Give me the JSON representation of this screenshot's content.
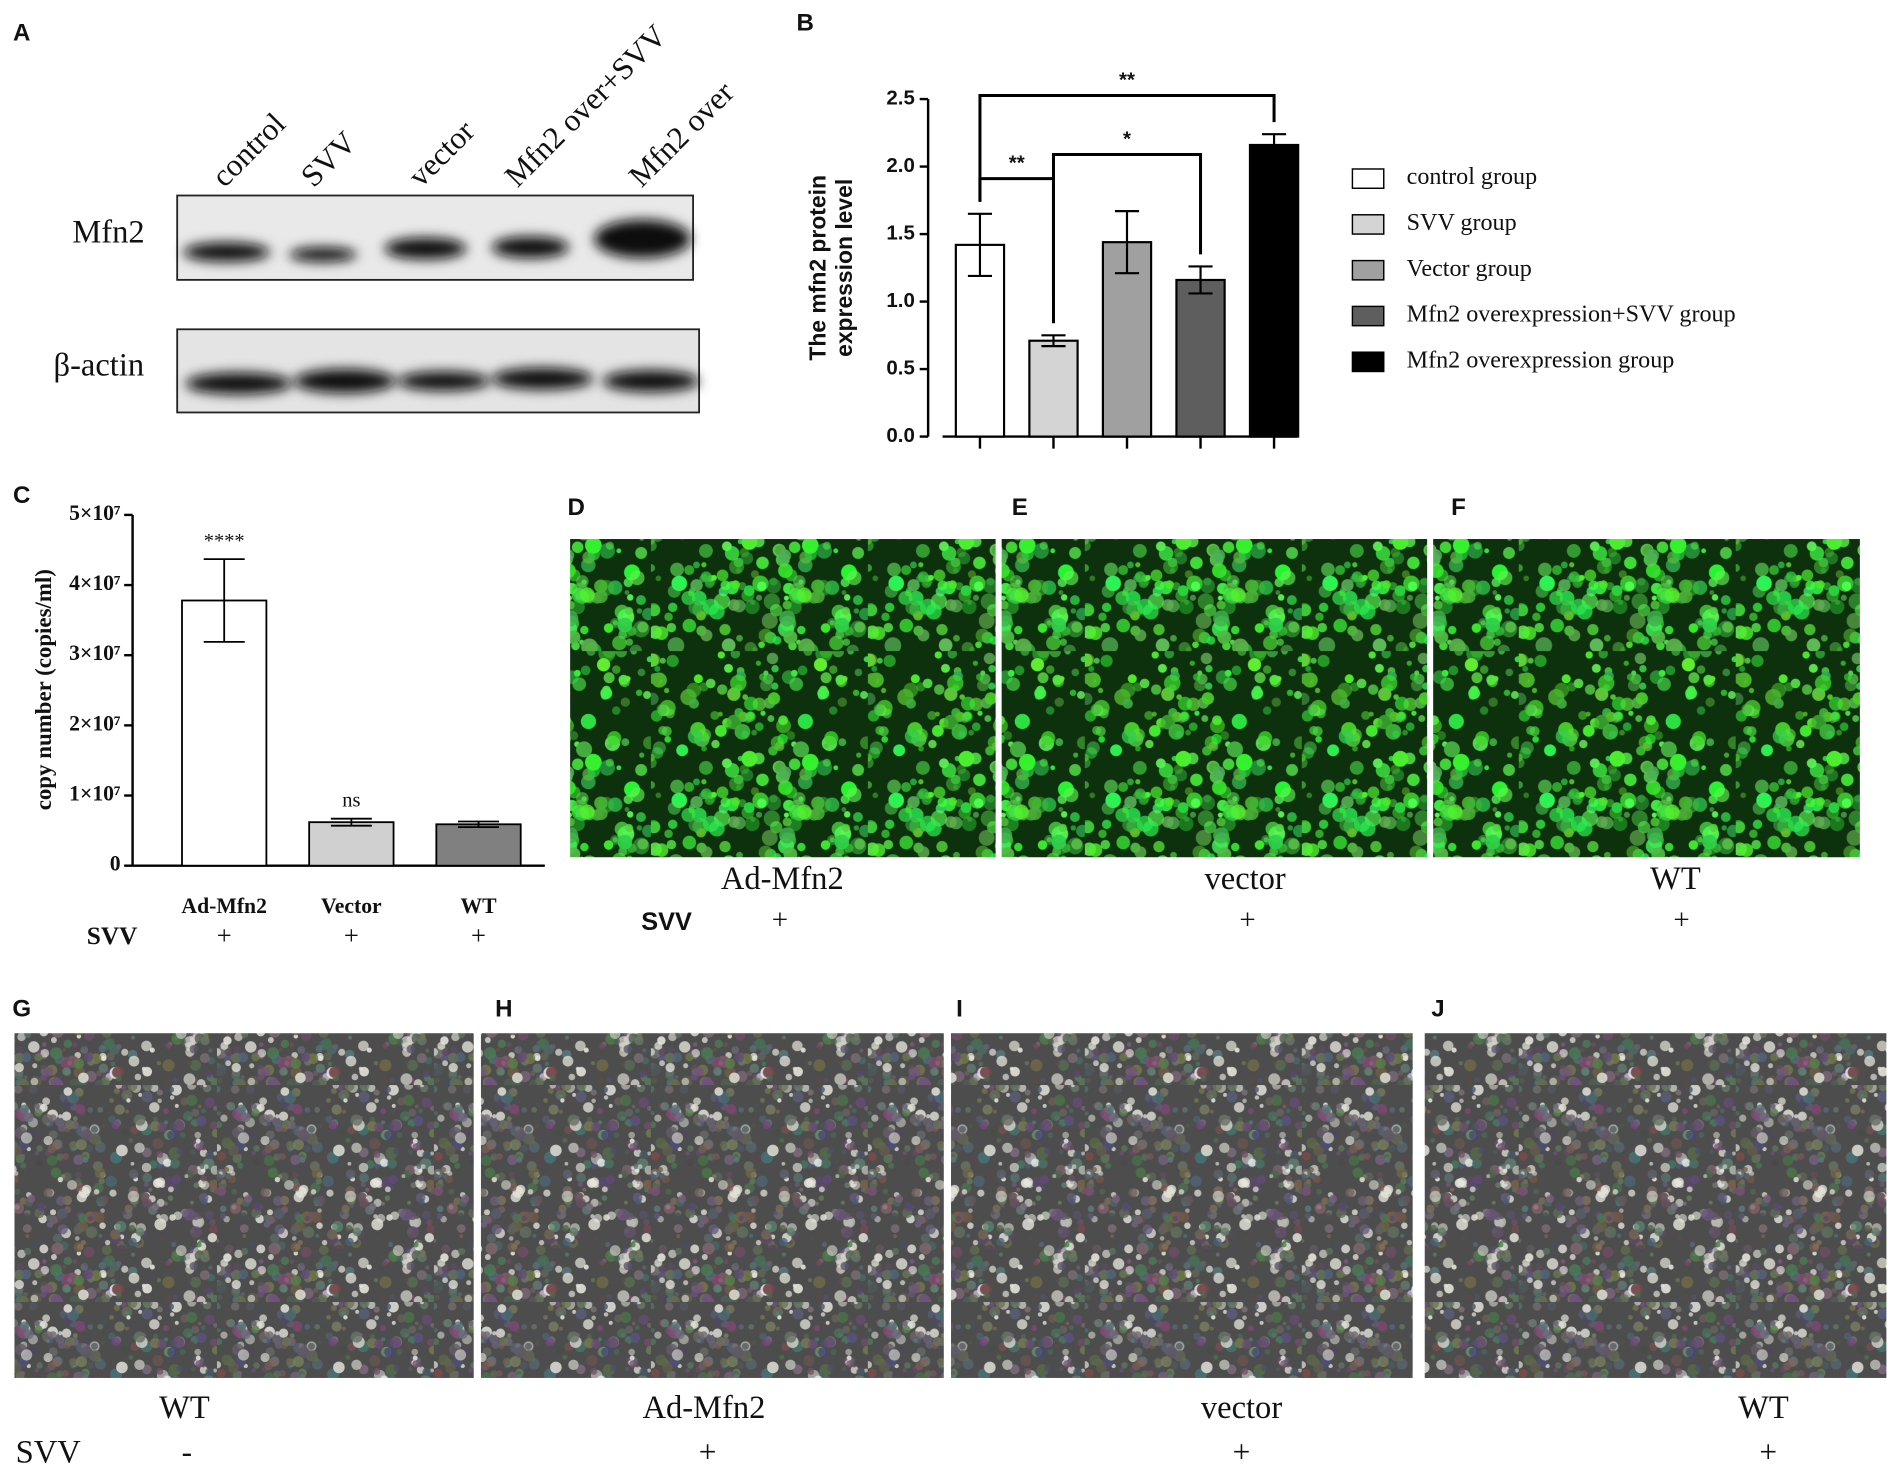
{
  "panel_labels": [
    "A",
    "B",
    "C",
    "D",
    "E",
    "F",
    "G",
    "H",
    "I",
    "J"
  ],
  "blot": {
    "lanes": [
      "control",
      "SVV",
      "vector",
      "Mfn2 over+SVV",
      "Mfn2 over"
    ],
    "rows": [
      "Mfn2",
      "β-actin"
    ]
  },
  "chart_data": [
    {
      "type": "bar",
      "ylabel": [
        "The mfn2 protein",
        "expression level"
      ],
      "ylim": [
        0,
        2.5
      ],
      "yticks": [
        {
          "value": 0,
          "label": "0.0"
        },
        0.5,
        {
          "value": 1,
          "label": "1.0"
        },
        1.5,
        {
          "value": 2,
          "label": "2.0"
        },
        2.5
      ],
      "series": [
        {
          "name": "control group",
          "color": "#ffffff",
          "values": [
            1.42
          ],
          "errors": [
            0.23
          ]
        },
        {
          "name": "SVV group",
          "color": "#d4d4d4",
          "values": [
            0.71
          ],
          "errors": [
            0.04
          ]
        },
        {
          "name": "Vector group",
          "color": "#a0a0a0",
          "values": [
            1.44
          ],
          "errors": [
            0.23
          ]
        },
        {
          "name": "Mfn2 overexpression+SVV group",
          "color": "#5e5e5e",
          "values": [
            1.16
          ],
          "errors": [
            0.1
          ]
        },
        {
          "name": "Mfn2 overexpression group",
          "color": "#000000",
          "values": [
            2.16
          ],
          "errors": [
            0.08
          ]
        }
      ],
      "annotations": [
        {
          "text": "**",
          "between": [
            0,
            1
          ]
        },
        {
          "text": "*",
          "between": [
            1,
            3
          ]
        },
        {
          "text": "**",
          "between": [
            0,
            4
          ]
        }
      ]
    },
    {
      "type": "bar",
      "ylabel": "copy number (copies/ml)",
      "ylim": [
        0,
        50000000
      ],
      "yticks": [
        0,
        {
          "value": 10000000,
          "label": "1×10⁷"
        },
        {
          "value": 20000000,
          "label": "2×10⁷"
        },
        {
          "value": 30000000,
          "label": "3×10⁷"
        },
        {
          "value": 40000000,
          "label": "4×10⁷"
        },
        {
          "value": 50000000,
          "label": "5×10⁷"
        }
      ],
      "categories": [
        "Ad-Mfn2",
        "Vector",
        "WT"
      ],
      "values": [
        37800000,
        6200000,
        5900000
      ],
      "errors": [
        5900000,
        500000,
        400000
      ],
      "colors": [
        "#ffffff",
        "#d0d0d0",
        "#808080"
      ],
      "annotations": [
        {
          "text": "****",
          "index": 0
        },
        {
          "text": "ns",
          "index": 1
        }
      ],
      "row_label": "SVV",
      "row_values": [
        "+",
        "+",
        "+"
      ]
    }
  ],
  "fluorescence": {
    "captions": [
      "Ad-Mfn2",
      "vector",
      "WT"
    ],
    "row_label": "SVV",
    "row_values": [
      "+",
      "+",
      "+"
    ]
  },
  "phase_contrast": {
    "captions": [
      "WT",
      "Ad-Mfn2",
      "vector",
      "WT"
    ],
    "row_label": "SVV",
    "row_values": [
      "-",
      "+",
      "+",
      "+"
    ]
  }
}
